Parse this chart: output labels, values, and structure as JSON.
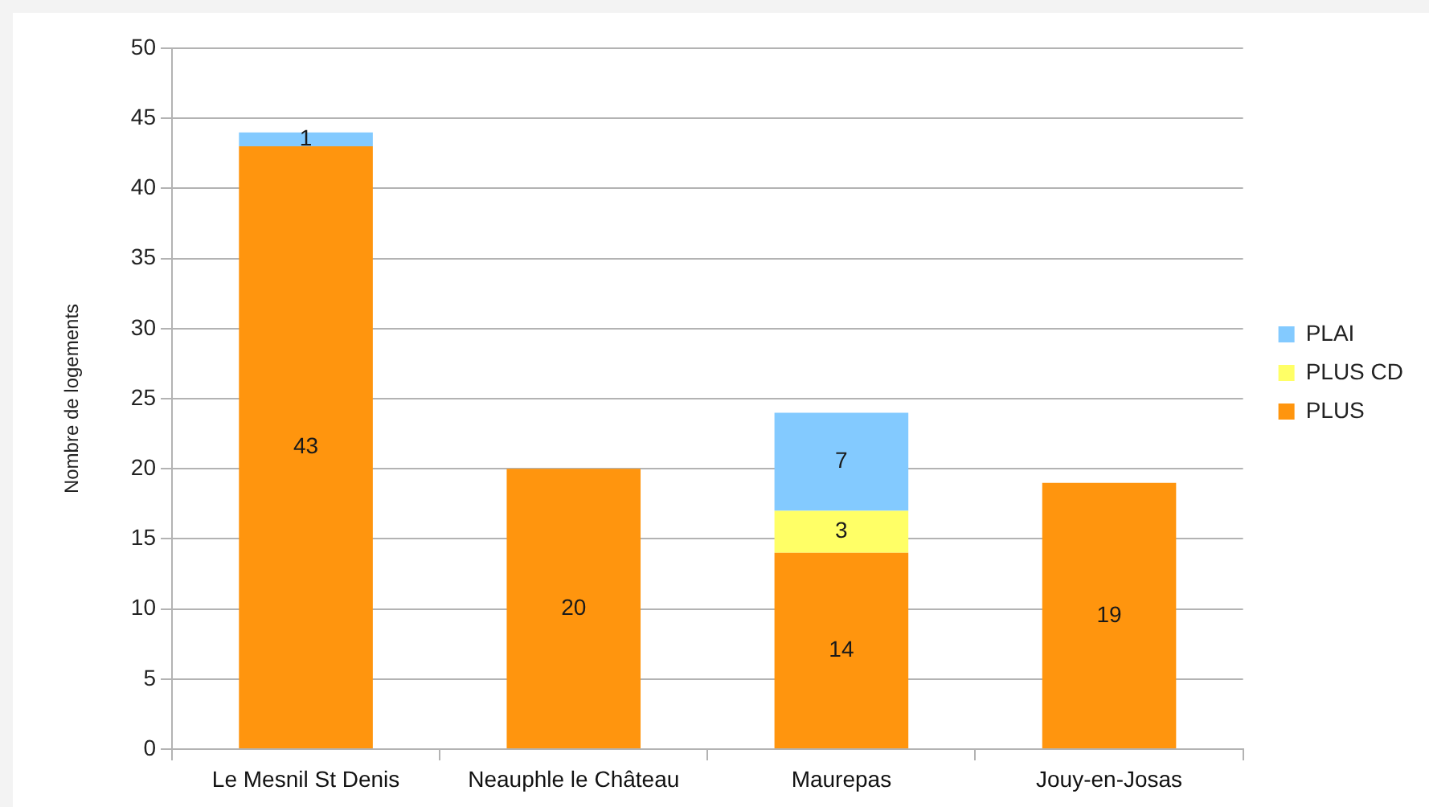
{
  "chart_data": {
    "type": "bar",
    "ylabel": "Nombre de logements",
    "categories": [
      "Le Mesnil St Denis",
      "Neauphle le Château",
      "Maurepas",
      "Jouy-en-Josas"
    ],
    "series": [
      {
        "name": "PLUS",
        "color": "#ff950e",
        "values": [
          43,
          20,
          14,
          19
        ]
      },
      {
        "name": "PLUS CD",
        "color": "#ffff66",
        "values": [
          null,
          null,
          3,
          null
        ]
      },
      {
        "name": "PLAI",
        "color": "#83caff",
        "values": [
          1,
          null,
          7,
          null
        ]
      }
    ],
    "stacked": true,
    "ylim": [
      0,
      50
    ],
    "yticks": [
      0,
      5,
      10,
      15,
      20,
      25,
      30,
      35,
      40,
      45,
      50
    ],
    "grid": "y",
    "legend": "right",
    "data_labels": true
  }
}
